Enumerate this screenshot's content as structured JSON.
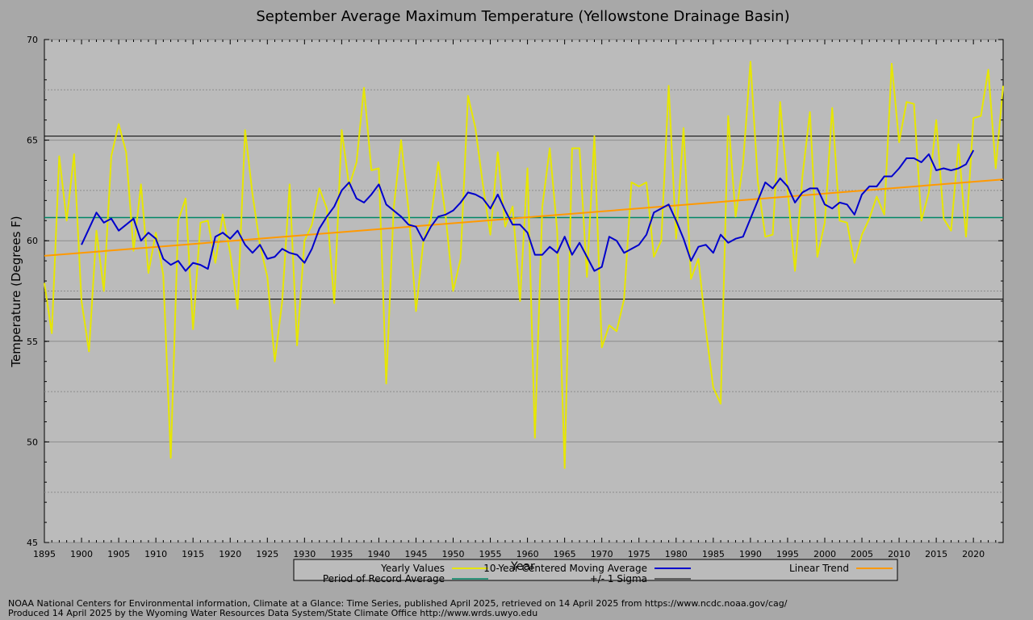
{
  "chart_data": {
    "type": "line",
    "title": "September Average Maximum Temperature (Yellowstone Drainage Basin)",
    "xlabel": "Year",
    "ylabel": "Temperature (Degrees F)",
    "xlim": [
      1895,
      2024
    ],
    "ylim": [
      45,
      70
    ],
    "x_ticks": [
      1895,
      1900,
      1905,
      1910,
      1915,
      1920,
      1925,
      1930,
      1935,
      1940,
      1945,
      1950,
      1955,
      1960,
      1965,
      1970,
      1975,
      1980,
      1985,
      1990,
      1995,
      2000,
      2005,
      2010,
      2015,
      2020
    ],
    "y_ticks": [
      45,
      50,
      55,
      60,
      65,
      70
    ],
    "grid": "horizontal",
    "legend_position": "bottom",
    "series": [
      {
        "name": "Yearly Values",
        "color": "#e6e600",
        "x": [
          1895,
          1896,
          1897,
          1898,
          1899,
          1900,
          1901,
          1902,
          1903,
          1904,
          1905,
          1906,
          1907,
          1908,
          1909,
          1910,
          1911,
          1912,
          1913,
          1914,
          1915,
          1916,
          1917,
          1918,
          1919,
          1920,
          1921,
          1922,
          1923,
          1924,
          1925,
          1926,
          1927,
          1928,
          1929,
          1930,
          1931,
          1932,
          1933,
          1934,
          1935,
          1936,
          1937,
          1938,
          1939,
          1940,
          1941,
          1942,
          1943,
          1944,
          1945,
          1946,
          1947,
          1948,
          1949,
          1950,
          1951,
          1952,
          1953,
          1954,
          1955,
          1956,
          1957,
          1958,
          1959,
          1960,
          1961,
          1962,
          1963,
          1964,
          1965,
          1966,
          1967,
          1968,
          1969,
          1970,
          1971,
          1972,
          1973,
          1974,
          1975,
          1976,
          1977,
          1978,
          1979,
          1980,
          1981,
          1982,
          1983,
          1984,
          1985,
          1986,
          1987,
          1988,
          1989,
          1990,
          1991,
          1992,
          1993,
          1994,
          1995,
          1996,
          1997,
          1998,
          1999,
          2000,
          2001,
          2002,
          2003,
          2004,
          2005,
          2006,
          2007,
          2008,
          2009,
          2010,
          2011,
          2012,
          2013,
          2014,
          2015,
          2016,
          2017,
          2018,
          2019,
          2020,
          2021,
          2022,
          2023,
          2024
        ],
        "values": [
          57.9,
          55.4,
          64.2,
          61.0,
          64.3,
          57.0,
          54.5,
          60.5,
          57.5,
          64.2,
          65.8,
          64.4,
          59.5,
          62.8,
          58.4,
          60.4,
          58.3,
          49.2,
          61.0,
          62.1,
          55.6,
          60.9,
          61.0,
          58.9,
          61.3,
          59.4,
          56.6,
          65.5,
          62.3,
          59.8,
          58.2,
          54.0,
          57.0,
          62.8,
          54.8,
          60.0,
          60.8,
          62.6,
          61.6,
          56.9,
          65.5,
          62.7,
          63.9,
          67.6,
          63.5,
          63.6,
          52.9,
          61.6,
          65.0,
          61.5,
          56.5,
          60.0,
          61.1,
          63.9,
          61.2,
          57.5,
          59.1,
          67.2,
          65.6,
          62.8,
          60.3,
          64.4,
          60.7,
          61.7,
          57.0,
          63.6,
          50.2,
          61.7,
          64.6,
          60.5,
          48.7,
          64.6,
          64.6,
          58.2,
          65.2,
          54.7,
          55.8,
          55.5,
          57.1,
          62.9,
          62.7,
          62.9,
          59.2,
          60.0,
          67.7,
          60.1,
          65.6,
          58.1,
          59.1,
          55.6,
          52.7,
          51.9,
          66.2,
          61.2,
          63.8,
          68.9,
          62.9,
          60.2,
          60.3,
          66.9,
          62.5,
          58.5,
          63.2,
          66.4,
          59.2,
          60.9,
          66.6,
          61.0,
          60.9,
          58.9,
          60.3,
          61.1,
          62.2,
          61.3,
          68.8,
          64.9,
          66.9,
          66.8,
          61.0,
          62.4,
          66.0,
          61.1,
          60.5,
          64.8,
          60.2,
          66.1,
          66.2,
          68.5,
          63.6,
          67.7
        ]
      },
      {
        "name": "10-Year Centered Moving Average",
        "color": "#0000cc",
        "x": [
          1900,
          1901,
          1902,
          1903,
          1904,
          1905,
          1906,
          1907,
          1908,
          1909,
          1910,
          1911,
          1912,
          1913,
          1914,
          1915,
          1916,
          1917,
          1918,
          1919,
          1920,
          1921,
          1922,
          1923,
          1924,
          1925,
          1926,
          1927,
          1928,
          1929,
          1930,
          1931,
          1932,
          1933,
          1934,
          1935,
          1936,
          1937,
          1938,
          1939,
          1940,
          1941,
          1942,
          1943,
          1944,
          1945,
          1946,
          1947,
          1948,
          1949,
          1950,
          1951,
          1952,
          1953,
          1954,
          1955,
          1956,
          1957,
          1958,
          1959,
          1960,
          1961,
          1962,
          1963,
          1964,
          1965,
          1966,
          1967,
          1968,
          1969,
          1970,
          1971,
          1972,
          1973,
          1974,
          1975,
          1976,
          1977,
          1978,
          1979,
          1980,
          1981,
          1982,
          1983,
          1984,
          1985,
          1986,
          1987,
          1988,
          1989,
          1990,
          1991,
          1992,
          1993,
          1994,
          1995,
          1996,
          1997,
          1998,
          1999,
          2000,
          2001,
          2002,
          2003,
          2004,
          2005,
          2006,
          2007,
          2008,
          2009,
          2010,
          2011,
          2012,
          2013,
          2014,
          2015,
          2016,
          2017,
          2018,
          2019,
          2020
        ],
        "values": [
          59.8,
          60.6,
          61.4,
          60.9,
          61.1,
          60.5,
          60.8,
          61.1,
          60.0,
          60.4,
          60.1,
          59.1,
          58.8,
          59.0,
          58.5,
          58.9,
          58.8,
          58.6,
          60.2,
          60.4,
          60.1,
          60.5,
          59.8,
          59.4,
          59.8,
          59.1,
          59.2,
          59.6,
          59.4,
          59.3,
          58.9,
          59.6,
          60.6,
          61.2,
          61.7,
          62.5,
          62.9,
          62.1,
          61.9,
          62.3,
          62.8,
          61.8,
          61.5,
          61.2,
          60.8,
          60.7,
          60.0,
          60.7,
          61.2,
          61.3,
          61.5,
          61.9,
          62.4,
          62.3,
          62.1,
          61.6,
          62.3,
          61.5,
          60.8,
          60.8,
          60.4,
          59.3,
          59.3,
          59.7,
          59.4,
          60.2,
          59.3,
          59.9,
          59.2,
          58.5,
          58.7,
          60.2,
          60.0,
          59.4,
          59.6,
          59.8,
          60.3,
          61.4,
          61.6,
          61.8,
          61.0,
          60.1,
          59.0,
          59.7,
          59.8,
          59.4,
          60.3,
          59.9,
          60.1,
          60.2,
          61.1,
          62.0,
          62.9,
          62.6,
          63.1,
          62.7,
          61.9,
          62.4,
          62.6,
          62.6,
          61.8,
          61.6,
          61.9,
          61.8,
          61.3,
          62.3,
          62.7,
          62.7,
          63.2,
          63.2,
          63.6,
          64.1,
          64.1,
          63.9,
          64.3,
          63.5,
          63.6,
          63.5,
          63.6,
          63.8,
          64.5
        ]
      },
      {
        "name": "Linear Trend",
        "color": "#ff9900",
        "x": [
          1895,
          2024
        ],
        "values": [
          59.25,
          63.05
        ]
      },
      {
        "name": "Period of Record Average",
        "color": "#008866",
        "value": 61.15
      },
      {
        "name": "+/- 1 Sigma",
        "color": "#000000",
        "values": [
          65.2,
          57.1
        ]
      }
    ],
    "footer": [
      "NOAA National Centers for Environmental information, Climate at a Glance: Time Series, published April 2025, retrieved on 14 April 2025 from https://www.ncdc.noaa.gov/cag/",
      "Produced 14 April 2025 by the Wyoming Water Resources Data System/State Climate Office http://www.wrds.uwyo.edu"
    ]
  }
}
